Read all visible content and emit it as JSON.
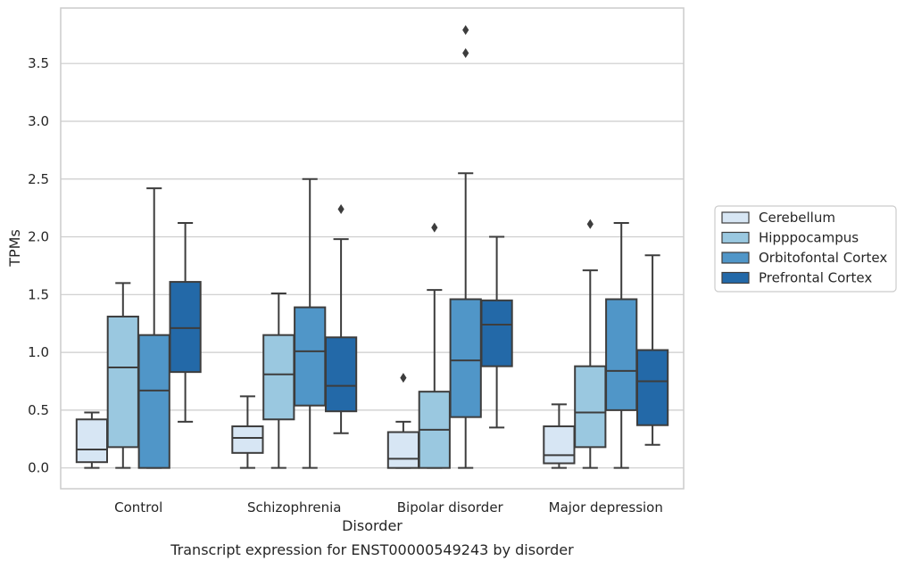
{
  "caption": "Transcript expression for ENST00000549243 by disorder",
  "chart_data": {
    "type": "box",
    "xlabel": "Disorder",
    "ylabel": "TPMs",
    "ylim": [
      -0.18,
      3.98
    ],
    "yticks": [
      0.0,
      0.5,
      1.0,
      1.5,
      2.0,
      2.5,
      3.0,
      3.5
    ],
    "ytick_labels": [
      "0.0",
      "0.5",
      "1.0",
      "1.5",
      "2.0",
      "2.5",
      "3.0",
      "3.5"
    ],
    "grid": "horizontal",
    "legend_position": "outside-right",
    "categories": [
      "Control",
      "Schizophrenia",
      "Bipolar disorder",
      "Major depression"
    ],
    "series": [
      {
        "name": "Cerebellum",
        "color": "#d7e6f4",
        "boxes": [
          {
            "whisker_low": 0.0,
            "q1": 0.05,
            "median": 0.16,
            "q3": 0.42,
            "whisker_high": 0.48,
            "outliers": []
          },
          {
            "whisker_low": 0.0,
            "q1": 0.13,
            "median": 0.26,
            "q3": 0.36,
            "whisker_high": 0.62,
            "outliers": []
          },
          {
            "whisker_low": 0.0,
            "q1": 0.0,
            "median": 0.08,
            "q3": 0.31,
            "whisker_high": 0.4,
            "outliers": [
              0.78
            ]
          },
          {
            "whisker_low": 0.0,
            "q1": 0.04,
            "median": 0.11,
            "q3": 0.36,
            "whisker_high": 0.55,
            "outliers": []
          }
        ]
      },
      {
        "name": "Hipppocampus",
        "color": "#9ac8e0",
        "boxes": [
          {
            "whisker_low": 0.0,
            "q1": 0.18,
            "median": 0.87,
            "q3": 1.31,
            "whisker_high": 1.6,
            "outliers": []
          },
          {
            "whisker_low": 0.0,
            "q1": 0.42,
            "median": 0.81,
            "q3": 1.15,
            "whisker_high": 1.51,
            "outliers": []
          },
          {
            "whisker_low": 0.0,
            "q1": 0.0,
            "median": 0.33,
            "q3": 0.66,
            "whisker_high": 1.54,
            "outliers": [
              2.08
            ]
          },
          {
            "whisker_low": 0.0,
            "q1": 0.18,
            "median": 0.48,
            "q3": 0.88,
            "whisker_high": 1.71,
            "outliers": [
              2.11
            ]
          }
        ]
      },
      {
        "name": "Orbitofontal Cortex",
        "color": "#5096c8",
        "boxes": [
          {
            "whisker_low": 0.0,
            "q1": 0.0,
            "median": 0.67,
            "q3": 1.15,
            "whisker_high": 2.42,
            "outliers": []
          },
          {
            "whisker_low": 0.0,
            "q1": 0.54,
            "median": 1.01,
            "q3": 1.39,
            "whisker_high": 2.5,
            "outliers": []
          },
          {
            "whisker_low": 0.0,
            "q1": 0.44,
            "median": 0.93,
            "q3": 1.46,
            "whisker_high": 2.55,
            "outliers": [
              3.59,
              3.79
            ]
          },
          {
            "whisker_low": 0.0,
            "q1": 0.5,
            "median": 0.84,
            "q3": 1.46,
            "whisker_high": 2.12,
            "outliers": []
          }
        ]
      },
      {
        "name": "Prefrontal Cortex",
        "color": "#2369a8",
        "boxes": [
          {
            "whisker_low": 0.4,
            "q1": 0.83,
            "median": 1.21,
            "q3": 1.61,
            "whisker_high": 2.12,
            "outliers": []
          },
          {
            "whisker_low": 0.3,
            "q1": 0.49,
            "median": 0.71,
            "q3": 1.13,
            "whisker_high": 1.98,
            "outliers": [
              2.24
            ]
          },
          {
            "whisker_low": 0.35,
            "q1": 0.88,
            "median": 1.24,
            "q3": 1.45,
            "whisker_high": 2.0,
            "outliers": []
          },
          {
            "whisker_low": 0.2,
            "q1": 0.37,
            "median": 0.75,
            "q3": 1.02,
            "whisker_high": 1.84,
            "outliers": []
          }
        ]
      }
    ]
  }
}
